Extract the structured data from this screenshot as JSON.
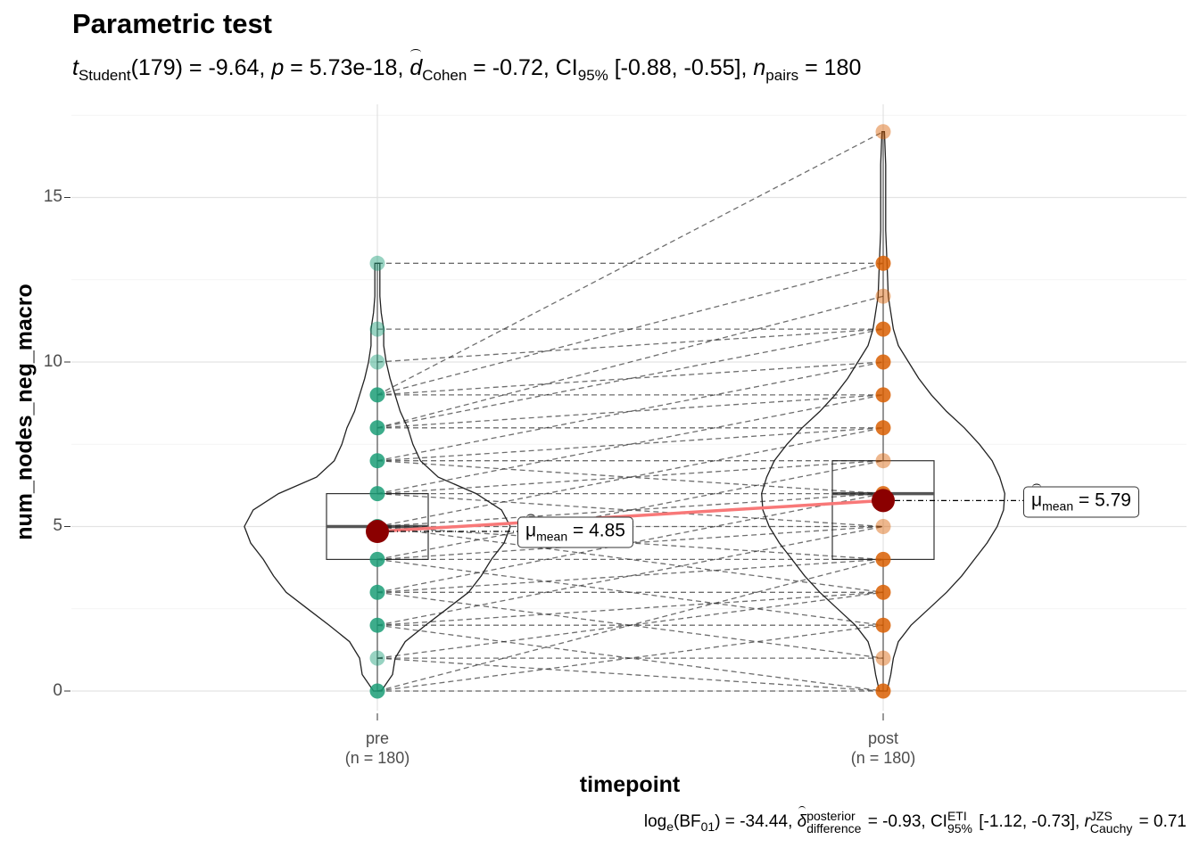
{
  "chart_data": {
    "type": "violin-paired",
    "title": "Parametric test",
    "subtitle": {
      "stat": "t",
      "stat_sub": "Student",
      "df": "(179)",
      "stat_val": "-9.64",
      "p_sym": "p",
      "p_val": "5.73e-18",
      "es_sym": "d",
      "es_sub": "Cohen",
      "es_val": "-0.72",
      "ci_label": "CI",
      "ci_sub": "95%",
      "ci_val": "[-0.88, -0.55]",
      "n_sym": "n",
      "n_sub": "pairs",
      "n_val": "180"
    },
    "caption": {
      "log_text": "log",
      "log_sub": "e",
      "bf_text": "(BF",
      "bf_sub": "01",
      "bf_val": "-34.44",
      "delta_sym": "δ",
      "delta_sup": "posterior",
      "delta_sub": "difference",
      "delta_val": "-0.93",
      "ci_label": "CI",
      "ci_sup": "ETI",
      "ci_sub": "95%",
      "ci_val": "[-1.12, -0.73]",
      "r_sym": "r",
      "r_sup": "JZS",
      "r_sub": "Cauchy",
      "r_val": "0.71"
    },
    "xlabel": "timepoint",
    "ylabel": "num_nodes_neg_macro",
    "ylim": [
      -0.4,
      17.4
    ],
    "yticks": [
      0,
      5,
      10,
      15
    ],
    "grid": true,
    "categories": [
      {
        "name": "pre",
        "n_label": "(n = 180)"
      },
      {
        "name": "post",
        "n_label": "(n = 180)"
      }
    ],
    "colors": {
      "pre": "#1b9e77",
      "post": "#d95f02",
      "mean_point": "#8b0000",
      "mean_line": "#f87878"
    },
    "means": [
      4.85,
      5.79
    ],
    "mean_labels": [
      {
        "sym": "μ",
        "sub": "mean",
        "val": "4.85"
      },
      {
        "sym": "μ",
        "sub": "mean",
        "val": "5.79"
      }
    ],
    "boxplots": [
      {
        "q1": 4,
        "median": 5,
        "q3": 6,
        "whisker_low": 0,
        "whisker_high": 13
      },
      {
        "q1": 4,
        "median": 6,
        "q3": 7,
        "whisker_low": 0,
        "whisker_high": 17
      }
    ],
    "pre_values": [
      0,
      1,
      2,
      3,
      4,
      5,
      6,
      7,
      8,
      9,
      10,
      11,
      13
    ],
    "post_values": [
      0,
      1,
      2,
      3,
      4,
      5,
      6,
      7,
      8,
      9,
      10,
      11,
      12,
      13,
      17
    ],
    "paired_lines": [
      [
        0,
        0
      ],
      [
        0,
        2
      ],
      [
        0,
        4
      ],
      [
        1,
        0
      ],
      [
        1,
        1
      ],
      [
        1,
        3
      ],
      [
        2,
        0
      ],
      [
        2,
        2
      ],
      [
        2,
        3
      ],
      [
        2,
        5
      ],
      [
        3,
        1
      ],
      [
        3,
        3
      ],
      [
        3,
        4
      ],
      [
        3,
        6
      ],
      [
        4,
        2
      ],
      [
        4,
        4
      ],
      [
        4,
        5
      ],
      [
        4,
        7
      ],
      [
        5,
        3
      ],
      [
        5,
        5
      ],
      [
        5,
        6
      ],
      [
        5,
        8
      ],
      [
        5,
        4
      ],
      [
        6,
        5
      ],
      [
        6,
        6
      ],
      [
        6,
        7
      ],
      [
        6,
        9
      ],
      [
        7,
        6
      ],
      [
        7,
        7
      ],
      [
        7,
        8
      ],
      [
        7,
        10
      ],
      [
        8,
        8
      ],
      [
        8,
        9
      ],
      [
        8,
        11
      ],
      [
        8,
        12
      ],
      [
        9,
        9
      ],
      [
        9,
        10
      ],
      [
        9,
        13
      ],
      [
        9,
        17
      ],
      [
        10,
        11
      ],
      [
        11,
        11
      ],
      [
        13,
        13
      ]
    ],
    "violins": [
      {
        "density": [
          [
            0,
            0.03
          ],
          [
            0.5,
            0.12
          ],
          [
            1,
            0.14
          ],
          [
            1.5,
            0.22
          ],
          [
            2,
            0.38
          ],
          [
            2.5,
            0.55
          ],
          [
            3,
            0.72
          ],
          [
            3.5,
            0.82
          ],
          [
            4,
            0.9
          ],
          [
            4.5,
            1.0
          ],
          [
            5,
            1.05
          ],
          [
            5.5,
            0.98
          ],
          [
            6,
            0.78
          ],
          [
            6.5,
            0.48
          ],
          [
            7,
            0.34
          ],
          [
            7.5,
            0.28
          ],
          [
            8,
            0.24
          ],
          [
            8.5,
            0.18
          ],
          [
            9,
            0.14
          ],
          [
            9.5,
            0.1
          ],
          [
            10,
            0.07
          ],
          [
            10.5,
            0.05
          ],
          [
            11,
            0.05
          ],
          [
            11.5,
            0.03
          ],
          [
            12,
            0.02
          ],
          [
            12.5,
            0.02
          ],
          [
            13,
            0.02
          ]
        ]
      },
      {
        "density": [
          [
            0,
            0.03
          ],
          [
            0.5,
            0.06
          ],
          [
            1,
            0.08
          ],
          [
            1.5,
            0.12
          ],
          [
            2,
            0.22
          ],
          [
            2.5,
            0.36
          ],
          [
            3,
            0.5
          ],
          [
            3.5,
            0.62
          ],
          [
            4,
            0.72
          ],
          [
            4.5,
            0.82
          ],
          [
            5,
            0.9
          ],
          [
            5.5,
            0.95
          ],
          [
            6,
            0.96
          ],
          [
            6.5,
            0.92
          ],
          [
            7,
            0.86
          ],
          [
            7.5,
            0.76
          ],
          [
            8,
            0.64
          ],
          [
            8.5,
            0.5
          ],
          [
            9,
            0.38
          ],
          [
            9.5,
            0.28
          ],
          [
            10,
            0.2
          ],
          [
            10.5,
            0.12
          ],
          [
            11,
            0.08
          ],
          [
            12,
            0.04
          ],
          [
            13,
            0.03
          ],
          [
            14,
            0.02
          ],
          [
            15,
            0.02
          ],
          [
            16,
            0.02
          ],
          [
            17,
            0.01
          ]
        ]
      }
    ]
  }
}
